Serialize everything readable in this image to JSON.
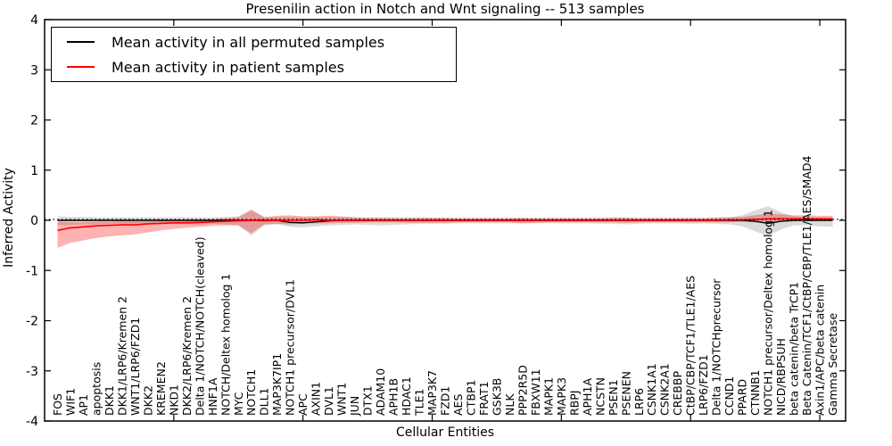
{
  "title": "Presenilin action in Notch and Wnt signaling -- 513 samples",
  "chart_data": {
    "type": "line",
    "title": "Presenilin action in Notch and Wnt signaling -- 513 samples",
    "xlabel": "Cellular Entities",
    "ylabel": "Inferred Activity",
    "ylim": [
      -4,
      4
    ],
    "yticks": [
      4,
      3,
      2,
      1,
      0,
      -1,
      -2,
      -3,
      -4
    ],
    "x_major_tick_every": 10,
    "grid": false,
    "legend_position": "upper left",
    "zero_line_style": "dotted",
    "categories": [
      "FOS",
      "WIF1",
      "AP1",
      "apoptosis",
      "DKK1",
      "DKK1/LRP6/Kremen 2",
      "WNT1/LRP6/FZD1",
      "DKK2",
      "KREMEN2",
      "NKD1",
      "DKK2/LRP6/Kremen 2",
      "Delta 1/NOTCH/NOTCH(cleaved)",
      "HNF1A",
      "NOTCH/Deltex homolog 1",
      "MYC",
      "NOTCH1",
      "DLL1",
      "MAP3K7IP1",
      "NOTCH1 precursor/DVL1",
      "APC",
      "AXIN1",
      "DVL1",
      "WNT1",
      "JUN",
      "DTX1",
      "ADAM10",
      "APH1B",
      "HDAC1",
      "TLE1",
      "MAP3K7",
      "FZD1",
      "AES",
      "CTBP1",
      "FRAT1",
      "GSK3B",
      "NLK",
      "PPP2R5D",
      "FBXW11",
      "MAPK1",
      "MAPK3",
      "RBPJ",
      "APH1A",
      "NCSTN",
      "PSEN1",
      "PSENEN",
      "LRP6",
      "CSNK1A1",
      "CSNK2A1",
      "CREBBP",
      "CtBP/CBP/TCF1/TLE1/AES",
      "LRP6/FZD1",
      "Delta 1/NOTCHprecursor",
      "CCND1",
      "PPARD",
      "CTNNB1",
      "NOTCH1 precursor/Deltex homolog 1",
      "NICD/RBPSUH",
      "beta catenin/beta TrCP1",
      "Beta Catenin/TCF1/CtBP/CBP/TLE1/AES/SMAD4",
      "Axin1/APC/beta catenin",
      "Gamma Secretase"
    ],
    "series": [
      {
        "name": "Mean activity in all permuted samples",
        "color": "#000000",
        "band_color": "rgba(0,0,0,0.14)",
        "values": [
          0,
          0,
          0,
          0,
          0,
          0,
          0,
          0,
          0,
          0,
          0,
          0,
          0,
          0,
          0,
          0,
          0,
          0,
          -0.04,
          -0.05,
          -0.03,
          -0.01,
          0,
          0,
          0,
          0,
          0,
          0,
          0,
          0,
          0,
          0,
          0,
          0,
          0,
          0,
          0,
          0,
          0,
          0,
          0,
          0,
          0,
          0,
          0,
          0,
          0,
          0,
          0,
          0,
          0,
          0,
          0,
          0,
          -0.02,
          -0.06,
          -0.02,
          0,
          0,
          0,
          0
        ],
        "band_low": [
          -0.1,
          -0.09,
          -0.08,
          -0.08,
          -0.07,
          -0.07,
          -0.07,
          -0.07,
          -0.07,
          -0.07,
          -0.08,
          -0.08,
          -0.07,
          -0.08,
          -0.1,
          -0.3,
          -0.1,
          -0.08,
          -0.13,
          -0.14,
          -0.12,
          -0.1,
          -0.09,
          -0.08,
          -0.09,
          -0.1,
          -0.09,
          -0.08,
          -0.07,
          -0.07,
          -0.07,
          -0.06,
          -0.06,
          -0.06,
          -0.06,
          -0.06,
          -0.06,
          -0.06,
          -0.06,
          -0.06,
          -0.06,
          -0.06,
          -0.07,
          -0.07,
          -0.08,
          -0.07,
          -0.06,
          -0.06,
          -0.06,
          -0.07,
          -0.06,
          -0.07,
          -0.08,
          -0.12,
          -0.22,
          -0.32,
          -0.18,
          -0.1,
          -0.1,
          -0.12,
          -0.13
        ],
        "band_high": [
          0.08,
          0.07,
          0.07,
          0.06,
          0.06,
          0.06,
          0.06,
          0.06,
          0.06,
          0.06,
          0.06,
          0.06,
          0.06,
          0.07,
          0.08,
          0.22,
          0.07,
          0.07,
          0.07,
          0.06,
          0.06,
          0.07,
          0.06,
          0.06,
          0.06,
          0.06,
          0.06,
          0.06,
          0.06,
          0.05,
          0.05,
          0.05,
          0.05,
          0.05,
          0.05,
          0.05,
          0.05,
          0.05,
          0.05,
          0.05,
          0.05,
          0.05,
          0.05,
          0.06,
          0.06,
          0.05,
          0.05,
          0.05,
          0.05,
          0.05,
          0.05,
          0.06,
          0.06,
          0.1,
          0.2,
          0.28,
          0.16,
          0.08,
          0.06,
          0.05,
          0.04
        ]
      },
      {
        "name": "Mean activity in patient samples",
        "color": "#ff0000",
        "band_color": "rgba(255,0,0,0.30)",
        "values": [
          -0.2,
          -0.15,
          -0.13,
          -0.11,
          -0.1,
          -0.09,
          -0.09,
          -0.07,
          -0.06,
          -0.05,
          -0.05,
          -0.04,
          -0.03,
          -0.02,
          -0.01,
          0.0,
          -0.01,
          0.0,
          0.0,
          0.0,
          0.01,
          0.0,
          0.0,
          0.0,
          0.0,
          0.0,
          0.0,
          0.0,
          0.0,
          0.0,
          0.0,
          0.0,
          0.0,
          0.0,
          0.0,
          0.0,
          0.0,
          0.0,
          0.0,
          0.0,
          0.0,
          0.0,
          0.0,
          0.0,
          0.0,
          0.0,
          0.0,
          0.0,
          0.0,
          0.0,
          0.0,
          0.0,
          0.01,
          0.01,
          0.02,
          0.03,
          0.03,
          0.03,
          0.03,
          0.03,
          0.03
        ],
        "band_low": [
          -0.55,
          -0.45,
          -0.4,
          -0.35,
          -0.32,
          -0.3,
          -0.28,
          -0.24,
          -0.2,
          -0.17,
          -0.15,
          -0.13,
          -0.11,
          -0.1,
          -0.1,
          -0.26,
          -0.08,
          -0.07,
          -0.08,
          -0.07,
          -0.06,
          -0.06,
          -0.05,
          -0.05,
          -0.04,
          -0.04,
          -0.04,
          -0.05,
          -0.05,
          -0.05,
          -0.05,
          -0.04,
          -0.04,
          -0.04,
          -0.04,
          -0.04,
          -0.06,
          -0.05,
          -0.04,
          -0.04,
          -0.04,
          -0.04,
          -0.04,
          -0.04,
          -0.05,
          -0.04,
          -0.04,
          -0.04,
          -0.04,
          -0.04,
          -0.04,
          -0.04,
          -0.04,
          -0.03,
          -0.04,
          -0.06,
          -0.03,
          -0.02,
          -0.02,
          -0.01,
          -0.02
        ],
        "band_high": [
          -0.03,
          -0.04,
          -0.04,
          -0.03,
          -0.03,
          -0.02,
          -0.02,
          -0.02,
          -0.01,
          -0.01,
          0.0,
          0.01,
          0.02,
          0.04,
          0.06,
          0.2,
          0.06,
          0.09,
          0.1,
          0.08,
          0.08,
          0.09,
          0.08,
          0.06,
          0.05,
          0.05,
          0.04,
          0.04,
          0.05,
          0.05,
          0.05,
          0.04,
          0.04,
          0.04,
          0.04,
          0.04,
          0.05,
          0.04,
          0.04,
          0.04,
          0.04,
          0.04,
          0.04,
          0.05,
          0.05,
          0.04,
          0.04,
          0.04,
          0.04,
          0.04,
          0.04,
          0.05,
          0.06,
          0.07,
          0.1,
          0.14,
          0.12,
          0.1,
          0.1,
          0.09,
          0.09
        ]
      }
    ]
  }
}
